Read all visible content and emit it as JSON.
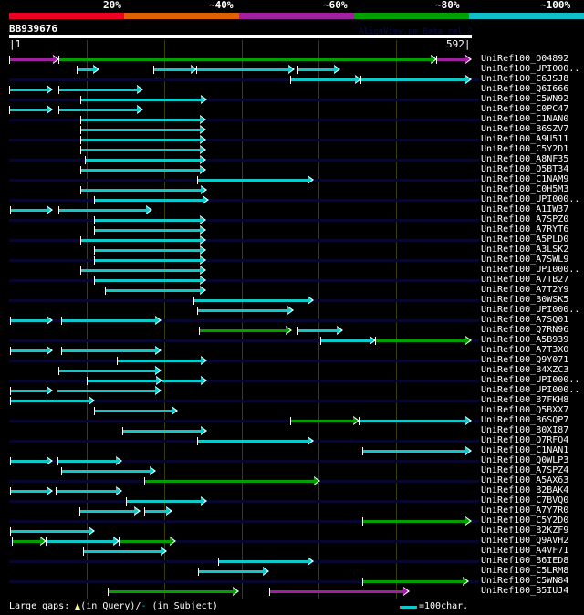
{
  "header": {
    "percent_labels": [
      "20%",
      "~40%",
      "~60%",
      "~80%",
      "~100%"
    ],
    "color_scale": [
      "#f00020",
      "#e06000",
      "#a020a0",
      "#00a000",
      "#10c0c8"
    ],
    "query_name": "BB939676",
    "watermark": "AlignView.pm Beta rel.7",
    "ruler_start": "|1",
    "ruler_end": "592|",
    "query_length": 592
  },
  "colors": {
    "cyan": "#10c8c8",
    "green": "#00a000",
    "magenta": "#a020a0"
  },
  "hits": [
    {
      "label": "UniRef100_O04892",
      "segs": [
        [
          1,
          64,
          "magenta"
        ],
        [
          64,
          546,
          "green"
        ],
        [
          546,
          591,
          "magenta"
        ]
      ]
    },
    {
      "label": "UniRef100_UPI000..",
      "segs": [
        [
          87,
          115,
          "cyan"
        ],
        [
          185,
          240,
          "cyan"
        ],
        [
          240,
          365,
          "cyan"
        ],
        [
          369,
          423,
          "cyan"
        ]
      ]
    },
    {
      "label": "UniRef100_C6JSJ8",
      "segs": [
        [
          360,
          450,
          "cyan"
        ],
        [
          450,
          591,
          "cyan"
        ]
      ]
    },
    {
      "label": "UniRef100_Q6I666",
      "segs": [
        [
          1,
          56,
          "cyan"
        ],
        [
          64,
          171,
          "cyan"
        ]
      ]
    },
    {
      "label": "UniRef100_C5WN92",
      "segs": [
        [
          92,
          253,
          "cyan"
        ]
      ]
    },
    {
      "label": "UniRef100_C0PC47",
      "segs": [
        [
          1,
          56,
          "cyan"
        ],
        [
          64,
          171,
          "cyan"
        ]
      ]
    },
    {
      "label": "UniRef100_C1NAN0",
      "segs": [
        [
          92,
          252,
          "cyan"
        ]
      ]
    },
    {
      "label": "UniRef100_B6SZV7",
      "segs": [
        [
          92,
          252,
          "cyan"
        ]
      ]
    },
    {
      "label": "UniRef100_A9U511",
      "segs": [
        [
          92,
          252,
          "cyan"
        ]
      ]
    },
    {
      "label": "UniRef100_C5Y2D1",
      "segs": [
        [
          92,
          252,
          "cyan"
        ]
      ]
    },
    {
      "label": "UniRef100_A8NF35",
      "segs": [
        [
          98,
          252,
          "cyan"
        ]
      ]
    },
    {
      "label": "UniRef100_Q5BT34",
      "segs": [
        [
          92,
          252,
          "cyan"
        ]
      ]
    },
    {
      "label": "UniRef100_C1NAM9",
      "segs": [
        [
          241,
          389,
          "cyan"
        ]
      ]
    },
    {
      "label": "UniRef100_C0H5M3",
      "segs": [
        [
          92,
          253,
          "cyan"
        ]
      ]
    },
    {
      "label": "UniRef100_UPI000..",
      "segs": [
        [
          109,
          255,
          "cyan"
        ]
      ]
    },
    {
      "label": "UniRef100_A1IW37",
      "segs": [
        [
          2,
          56,
          "cyan"
        ],
        [
          64,
          183,
          "cyan"
        ]
      ]
    },
    {
      "label": "UniRef100_A7SPZ0",
      "segs": [
        [
          109,
          252,
          "cyan"
        ]
      ]
    },
    {
      "label": "UniRef100_A7RYT6",
      "segs": [
        [
          109,
          252,
          "cyan"
        ]
      ]
    },
    {
      "label": "UniRef100_A5PLD0",
      "segs": [
        [
          92,
          252,
          "cyan"
        ]
      ]
    },
    {
      "label": "UniRef100_A3LSK2",
      "segs": [
        [
          109,
          252,
          "cyan"
        ]
      ]
    },
    {
      "label": "UniRef100_A7SWL9",
      "segs": [
        [
          109,
          252,
          "cyan"
        ]
      ]
    },
    {
      "label": "UniRef100_UPI000..",
      "segs": [
        [
          92,
          252,
          "cyan"
        ]
      ]
    },
    {
      "label": "UniRef100_A7TB27",
      "segs": [
        [
          109,
          252,
          "cyan"
        ]
      ]
    },
    {
      "label": "UniRef100_A7T2Y9",
      "segs": [
        [
          123,
          252,
          "cyan"
        ]
      ]
    },
    {
      "label": "UniRef100_B0WSK5",
      "segs": [
        [
          237,
          389,
          "cyan"
        ]
      ]
    },
    {
      "label": "UniRef100_UPI000..",
      "segs": [
        [
          241,
          363,
          "cyan"
        ]
      ]
    },
    {
      "label": "UniRef100_A7SQ01",
      "segs": [
        [
          2,
          56,
          "cyan"
        ],
        [
          67,
          194,
          "cyan"
        ]
      ]
    },
    {
      "label": "UniRef100_Q7RN96",
      "segs": [
        [
          243,
          361,
          "green"
        ],
        [
          369,
          427,
          "cyan"
        ]
      ]
    },
    {
      "label": "UniRef100_A5B939",
      "segs": [
        [
          398,
          468,
          "cyan"
        ],
        [
          468,
          591,
          "green"
        ]
      ]
    },
    {
      "label": "UniRef100_A7T3X0",
      "segs": [
        [
          2,
          56,
          "cyan"
        ],
        [
          67,
          194,
          "cyan"
        ]
      ]
    },
    {
      "label": "UniRef100_Q9Y071",
      "segs": [
        [
          139,
          253,
          "cyan"
        ]
      ]
    },
    {
      "label": "UniRef100_B4XZC3",
      "segs": [
        [
          64,
          194,
          "cyan"
        ]
      ]
    },
    {
      "label": "UniRef100_UPI000..",
      "segs": [
        [
          100,
          196,
          "cyan"
        ],
        [
          196,
          253,
          "cyan"
        ]
      ]
    },
    {
      "label": "UniRef100_UPI000..",
      "segs": [
        [
          2,
          56,
          "cyan"
        ],
        [
          62,
          194,
          "cyan"
        ]
      ]
    },
    {
      "label": "UniRef100_B7FKH8",
      "segs": [
        [
          2,
          109,
          "cyan"
        ]
      ]
    },
    {
      "label": "UniRef100_Q5BXX7",
      "segs": [
        [
          109,
          216,
          "cyan"
        ]
      ]
    },
    {
      "label": "UniRef100_B6SQP7",
      "segs": [
        [
          360,
          448,
          "green"
        ],
        [
          448,
          591,
          "cyan"
        ]
      ]
    },
    {
      "label": "UniRef100_B0XI87",
      "segs": [
        [
          146,
          253,
          "cyan"
        ]
      ]
    },
    {
      "label": "UniRef100_Q7RFQ4",
      "segs": [
        [
          241,
          389,
          "cyan"
        ]
      ]
    },
    {
      "label": "UniRef100_C1NAN1",
      "segs": [
        [
          452,
          591,
          "cyan"
        ]
      ]
    },
    {
      "label": "UniRef100_Q0WLP3",
      "segs": [
        [
          2,
          56,
          "cyan"
        ],
        [
          63,
          144,
          "cyan"
        ]
      ]
    },
    {
      "label": "UniRef100_A7SPZ4",
      "segs": [
        [
          67,
          188,
          "cyan"
        ]
      ]
    },
    {
      "label": "UniRef100_A5AX63",
      "segs": [
        [
          174,
          397,
          "green"
        ]
      ]
    },
    {
      "label": "UniRef100_B2BAK4",
      "segs": [
        [
          2,
          56,
          "cyan"
        ],
        [
          61,
          144,
          "cyan"
        ]
      ]
    },
    {
      "label": "UniRef100_C7BVQ0",
      "segs": [
        [
          150,
          253,
          "cyan"
        ]
      ]
    },
    {
      "label": "UniRef100_A7Y7R0",
      "segs": [
        [
          91,
          168,
          "cyan"
        ],
        [
          174,
          208,
          "cyan"
        ]
      ]
    },
    {
      "label": "UniRef100_C5Y2D0",
      "segs": [
        [
          452,
          591,
          "green"
        ]
      ]
    },
    {
      "label": "UniRef100_B2KZF9",
      "segs": [
        [
          2,
          109,
          "cyan"
        ]
      ]
    },
    {
      "label": "UniRef100_Q9AVH2",
      "segs": [
        [
          4,
          48,
          "green"
        ],
        [
          48,
          141,
          "cyan"
        ],
        [
          141,
          213,
          "green"
        ]
      ]
    },
    {
      "label": "UniRef100_A4VF71",
      "segs": [
        [
          95,
          202,
          "cyan"
        ]
      ]
    },
    {
      "label": "UniRef100_B6IED8",
      "segs": [
        [
          268,
          389,
          "cyan"
        ]
      ]
    },
    {
      "label": "UniRef100_C5LRM8",
      "segs": [
        [
          242,
          332,
          "cyan"
        ]
      ]
    },
    {
      "label": "UniRef100_C5WN84",
      "segs": [
        [
          452,
          587,
          "green"
        ]
      ]
    },
    {
      "label": "UniRef100_B5IUJ4",
      "segs": [
        [
          127,
          294,
          "green"
        ],
        [
          333,
          511,
          "magenta"
        ]
      ]
    }
  ],
  "footer": {
    "gaps_prefix": "Large gaps: ",
    "gaps_query": "(in Query)/",
    "gaps_subject_mark": "-",
    "gaps_subject": " (in Subject)",
    "scale_label": "=100char."
  }
}
